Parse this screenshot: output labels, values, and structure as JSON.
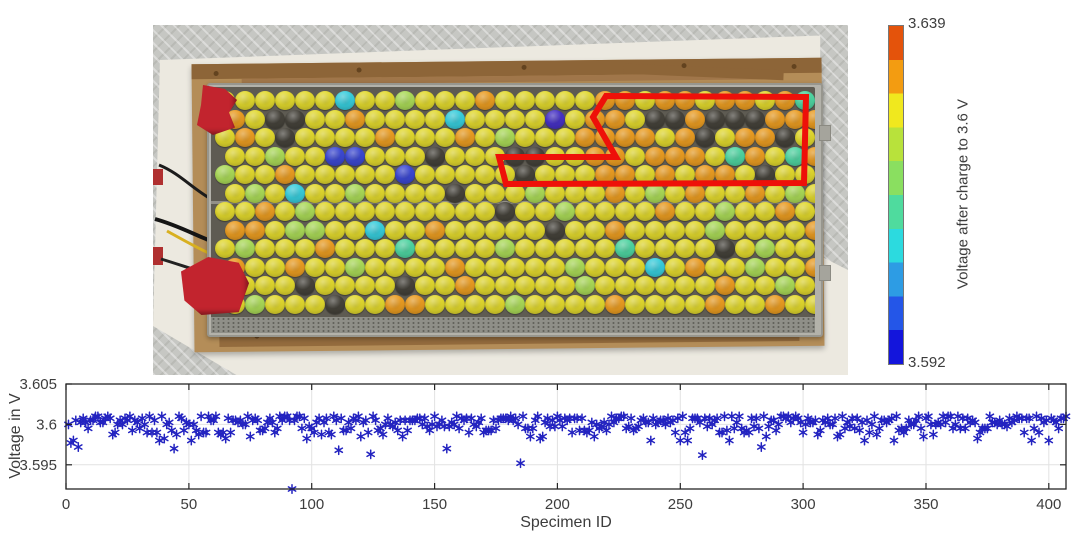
{
  "chart_data": {
    "type": "scatter",
    "title": "",
    "xlabel": "Specimen ID",
    "ylabel": "Voltage in V",
    "xlim": [
      0,
      407
    ],
    "ylim": [
      3.592,
      3.605
    ],
    "xticks": [
      0,
      50,
      100,
      150,
      200,
      250,
      300,
      350,
      400
    ],
    "yticks": [
      3.595,
      3.6,
      3.605
    ],
    "grid": true,
    "legend": "none",
    "marker": "*",
    "marker_color": "#2323c0",
    "n_points": 407,
    "band": {
      "mean": 3.6,
      "upper_spread": 0.0011,
      "lower_spread": 0.0012,
      "quantize": 0.00025,
      "seed": 7
    },
    "outliers": [
      {
        "x": 2,
        "y": 3.5977
      },
      {
        "x": 5,
        "y": 3.5972
      },
      {
        "x": 44,
        "y": 3.597
      },
      {
        "x": 92,
        "y": 3.592
      },
      {
        "x": 111,
        "y": 3.5968
      },
      {
        "x": 124,
        "y": 3.5963
      },
      {
        "x": 155,
        "y": 3.597
      },
      {
        "x": 185,
        "y": 3.5952
      },
      {
        "x": 259,
        "y": 3.5962
      },
      {
        "x": 283,
        "y": 3.5972
      }
    ]
  },
  "colorbar": {
    "title": "Voltage after charge to 3.6 V",
    "max_label": "3.639",
    "min_label": "3.592",
    "bands_top_to_bottom": [
      "#e4530b",
      "#f39c11",
      "#f0e81e",
      "#b8e23b",
      "#8adf60",
      "#4fdb9e",
      "#2cdadf",
      "#2d9ce4",
      "#2456e8",
      "#1315dc"
    ]
  },
  "photo": {
    "description": "Top view of a battery module: cylindrical cells color-coded by voltage, on cardboard on a white table, with a red outline highlighting a cell group",
    "cell_palette": {
      "Y": "#e2d92e",
      "O": "#eb9d22",
      "K": "#46433b",
      "G": "#abdb58",
      "T": "#4fd5a2",
      "C": "#38cedd",
      "B": "#3c49d4",
      "P": "#4732c6"
    },
    "cell_rows": [
      "YYYYYYCYYGYYYOYYYYYOOYOOYOOYOT",
      "OYKKYYOYYYYCYYYYPYOOYKKOKKKOOO",
      "YOYKYYYYOYYYOYGYYYOOOOYOKYOOKY",
      "YYGYYBBYYYKYYYKKYYOOYOOOYTOYTO",
      "GYYOYYYYYBYYYYYKYYYOOYOYOOYKYY",
      "YGYCYYGYYYYKYYYGYYYOYGYOYYOYGY",
      "YYOYGYYYYYYYYYKYYGYYYYOYYGYYOY",
      "OOYGGYYCYYOYYYYYKYYOYYYYGYYYYO",
      "YGYYYOYYYTYYYYGYYYYYTYYYYKYGYY",
      "OYYOYYGYYYYOYYYYYGYYYCYOYYGYYO",
      "YYYYKYYYYKYYOYYYYYGYYYYYYOYYGY",
      "YGYYYKYYOOYYYYGYYYYOYYYYOYYOYY"
    ],
    "highlight": {
      "color": "#ee1009",
      "points": [
        [
          453,
          71
        ],
        [
          440,
          92
        ],
        [
          463,
          132
        ],
        [
          346,
          132
        ],
        [
          353,
          159
        ],
        [
          651,
          158
        ],
        [
          653,
          72
        ]
      ]
    }
  }
}
